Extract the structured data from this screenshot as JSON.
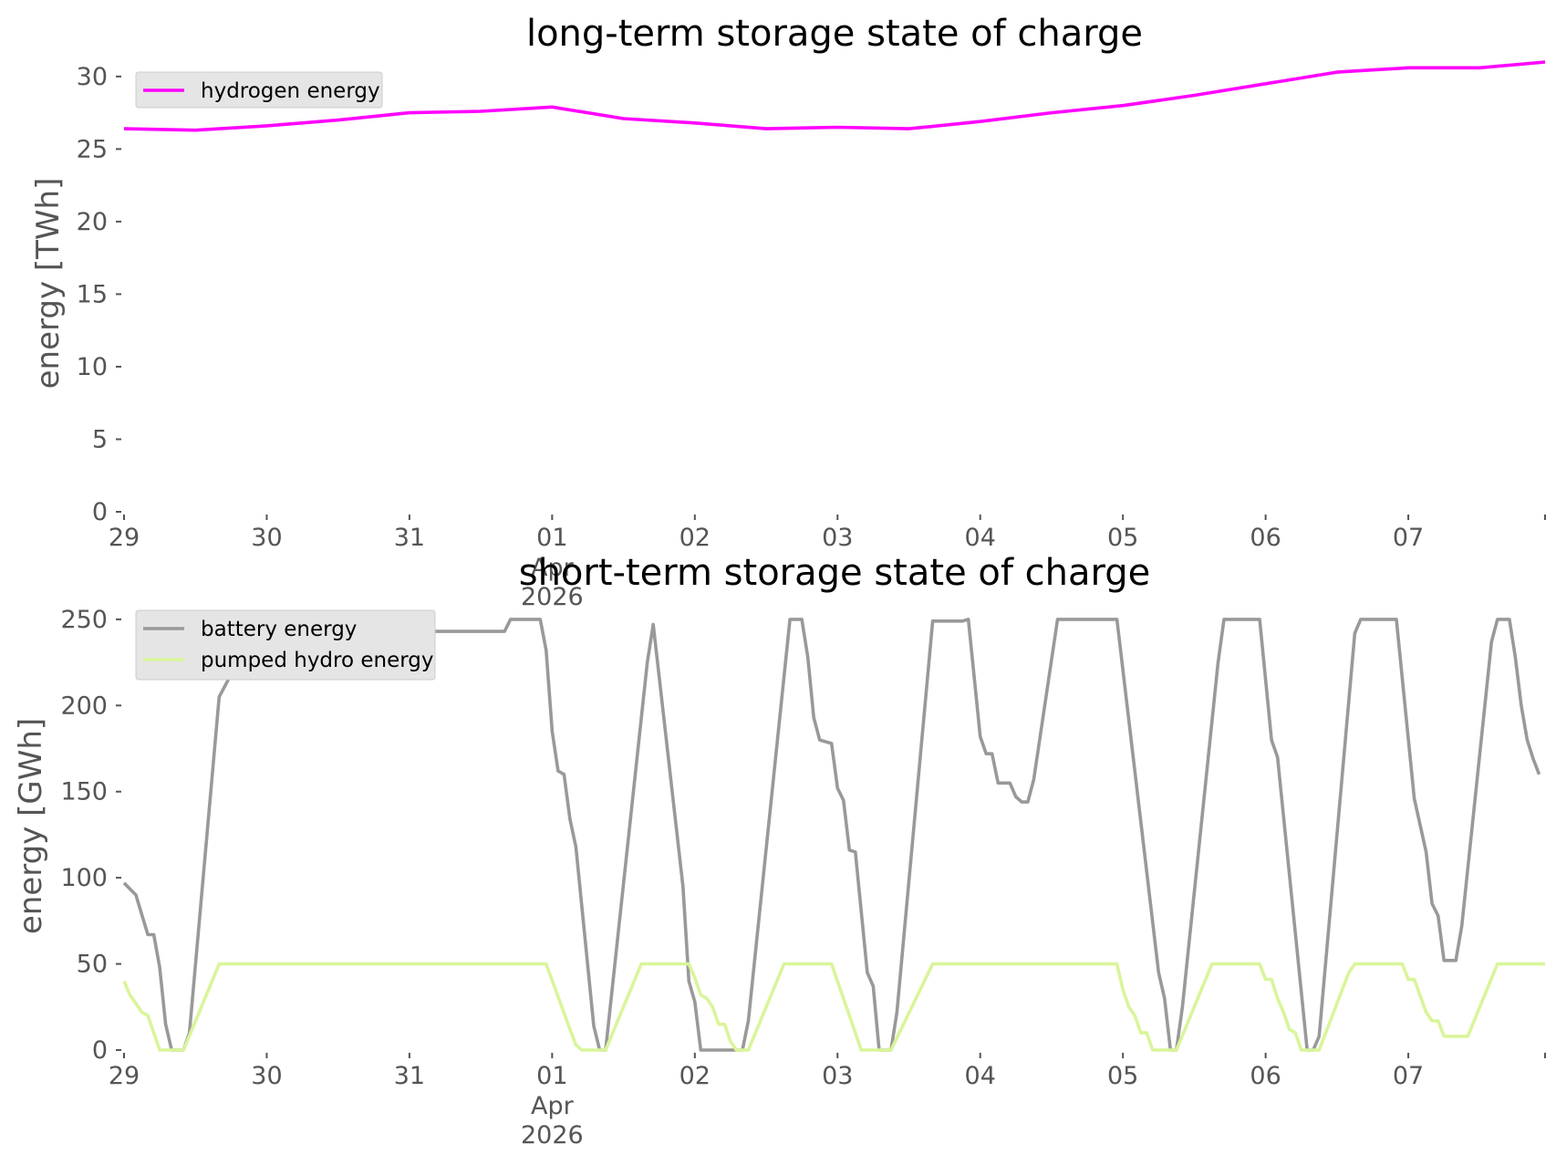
{
  "chart_data": [
    {
      "type": "line",
      "title": "long-term storage state of charge",
      "ylabel": "energy [TWh]",
      "xlabel": "",
      "x_ticks": [
        "29",
        "30",
        "31",
        "01",
        "02",
        "03",
        "04",
        "05",
        "06",
        "07"
      ],
      "x_tick_month": "Apr",
      "x_tick_year": "2026",
      "x_range": [
        "2026-03-29",
        "2026-04-07 23:00"
      ],
      "ylim": [
        0,
        31.5
      ],
      "y_ticks": [
        0,
        5,
        10,
        15,
        20,
        25,
        30
      ],
      "grid": false,
      "legend_position": "top-left",
      "x": [
        "2026-03-29 00:00",
        "2026-03-29 12:00",
        "2026-03-30 00:00",
        "2026-03-30 12:00",
        "2026-03-31 00:00",
        "2026-03-31 12:00",
        "2026-04-01 00:00",
        "2026-04-01 12:00",
        "2026-04-02 00:00",
        "2026-04-02 12:00",
        "2026-04-03 00:00",
        "2026-04-03 12:00",
        "2026-04-04 00:00",
        "2026-04-04 12:00",
        "2026-04-05 00:00",
        "2026-04-05 12:00",
        "2026-04-06 00:00",
        "2026-04-06 12:00",
        "2026-04-07 00:00",
        "2026-04-07 12:00",
        "2026-04-07 23:00"
      ],
      "series": [
        {
          "name": "hydrogen energy",
          "color": "#ff00ff",
          "values": [
            26.4,
            26.3,
            26.6,
            27.0,
            27.5,
            27.6,
            27.9,
            27.1,
            26.8,
            26.4,
            26.5,
            26.4,
            26.9,
            27.5,
            28.0,
            28.7,
            29.5,
            30.3,
            30.6,
            30.6,
            31.0
          ]
        }
      ]
    },
    {
      "type": "line",
      "title": "short-term storage state of charge",
      "ylabel": "energy [GWh]",
      "xlabel": "",
      "x_ticks": [
        "29",
        "30",
        "31",
        "01",
        "02",
        "03",
        "04",
        "05",
        "06",
        "07"
      ],
      "x_tick_month": "Apr",
      "x_tick_year": "2026",
      "x_range": [
        "2026-03-29",
        "2026-04-07 23:00"
      ],
      "ylim": [
        0,
        260
      ],
      "y_ticks": [
        0,
        50,
        100,
        150,
        200,
        250
      ],
      "grid": false,
      "legend_position": "top-left",
      "series": [
        {
          "name": "battery energy",
          "color": "#999999",
          "points": [
            [
              "2026-03-29 00:00",
              97
            ],
            [
              "2026-03-29 02:00",
              90
            ],
            [
              "2026-03-29 04:00",
              67
            ],
            [
              "2026-03-29 05:00",
              67
            ],
            [
              "2026-03-29 06:00",
              48
            ],
            [
              "2026-03-29 07:00",
              15
            ],
            [
              "2026-03-29 08:00",
              0
            ],
            [
              "2026-03-29 10:00",
              0
            ],
            [
              "2026-03-29 11:00",
              10
            ],
            [
              "2026-03-29 16:00",
              205
            ],
            [
              "2026-03-29 18:00",
              218
            ],
            [
              "2026-03-29 21:00",
              218
            ],
            [
              "2026-03-29 23:00",
              250
            ],
            [
              "2026-03-31 00:00",
              250
            ],
            [
              "2026-03-31 01:00",
              243
            ],
            [
              "2026-03-31 16:00",
              243
            ],
            [
              "2026-03-31 17:00",
              250
            ],
            [
              "2026-03-31 22:00",
              250
            ],
            [
              "2026-03-31 23:00",
              232
            ],
            [
              "2026-04-01 00:00",
              185
            ],
            [
              "2026-04-01 01:00",
              162
            ],
            [
              "2026-04-01 02:00",
              160
            ],
            [
              "2026-04-01 03:00",
              134
            ],
            [
              "2026-04-01 04:00",
              118
            ],
            [
              "2026-04-01 07:00",
              14
            ],
            [
              "2026-04-01 08:00",
              0
            ],
            [
              "2026-04-01 09:00",
              0
            ],
            [
              "2026-04-01 16:00",
              225
            ],
            [
              "2026-04-01 17:00",
              247
            ],
            [
              "2026-04-01 22:00",
              95
            ],
            [
              "2026-04-01 23:00",
              40
            ],
            [
              "2026-04-02 00:00",
              28
            ],
            [
              "2026-04-02 01:00",
              0
            ],
            [
              "2026-04-02 08:00",
              0
            ],
            [
              "2026-04-02 09:00",
              17
            ],
            [
              "2026-04-02 16:00",
              250
            ],
            [
              "2026-04-02 18:00",
              250
            ],
            [
              "2026-04-02 19:00",
              228
            ],
            [
              "2026-04-02 20:00",
              193
            ],
            [
              "2026-04-02 21:00",
              180
            ],
            [
              "2026-04-02 23:00",
              178
            ],
            [
              "2026-04-03 00:00",
              152
            ],
            [
              "2026-04-03 01:00",
              145
            ],
            [
              "2026-04-03 02:00",
              116
            ],
            [
              "2026-04-03 03:00",
              115
            ],
            [
              "2026-04-03 05:00",
              45
            ],
            [
              "2026-04-03 06:00",
              37
            ],
            [
              "2026-04-03 07:00",
              0
            ],
            [
              "2026-04-03 09:00",
              0
            ],
            [
              "2026-04-03 10:00",
              22
            ],
            [
              "2026-04-03 16:00",
              249
            ],
            [
              "2026-04-03 21:00",
              249
            ],
            [
              "2026-04-03 22:00",
              250
            ],
            [
              "2026-04-04 00:00",
              182
            ],
            [
              "2026-04-04 01:00",
              172
            ],
            [
              "2026-04-04 02:00",
              172
            ],
            [
              "2026-04-04 03:00",
              155
            ],
            [
              "2026-04-04 05:00",
              155
            ],
            [
              "2026-04-04 06:00",
              147
            ],
            [
              "2026-04-04 07:00",
              144
            ],
            [
              "2026-04-04 08:00",
              144
            ],
            [
              "2026-04-04 09:00",
              157
            ],
            [
              "2026-04-04 13:00",
              250
            ],
            [
              "2026-04-04 23:00",
              250
            ],
            [
              "2026-04-05 06:00",
              45
            ],
            [
              "2026-04-05 07:00",
              30
            ],
            [
              "2026-04-05 08:00",
              0
            ],
            [
              "2026-04-05 09:00",
              0
            ],
            [
              "2026-04-05 10:00",
              25
            ],
            [
              "2026-04-05 16:00",
              225
            ],
            [
              "2026-04-05 17:00",
              250
            ],
            [
              "2026-04-05 23:00",
              250
            ],
            [
              "2026-04-06 01:00",
              180
            ],
            [
              "2026-04-06 02:00",
              170
            ],
            [
              "2026-04-06 07:00",
              0
            ],
            [
              "2026-04-06 08:00",
              0
            ],
            [
              "2026-04-06 09:00",
              8
            ],
            [
              "2026-04-06 15:00",
              242
            ],
            [
              "2026-04-06 16:00",
              250
            ],
            [
              "2026-04-06 22:00",
              250
            ],
            [
              "2026-04-07 01:00",
              146
            ],
            [
              "2026-04-07 03:00",
              115
            ],
            [
              "2026-04-07 04:00",
              85
            ],
            [
              "2026-04-07 05:00",
              78
            ],
            [
              "2026-04-07 06:00",
              52
            ],
            [
              "2026-04-07 08:00",
              52
            ],
            [
              "2026-04-07 09:00",
              72
            ],
            [
              "2026-04-07 14:00",
              237
            ],
            [
              "2026-04-07 15:00",
              250
            ],
            [
              "2026-04-07 17:00",
              250
            ],
            [
              "2026-04-07 18:00",
              228
            ],
            [
              "2026-04-07 19:00",
              200
            ],
            [
              "2026-04-07 20:00",
              180
            ],
            [
              "2026-04-07 21:00",
              169
            ],
            [
              "2026-04-07 22:00",
              160
            ]
          ]
        },
        {
          "name": "pumped hydro energy",
          "color": "#d9f59a",
          "points": [
            [
              "2026-03-29 00:00",
              40
            ],
            [
              "2026-03-29 01:00",
              32
            ],
            [
              "2026-03-29 03:00",
              22
            ],
            [
              "2026-03-29 04:00",
              20
            ],
            [
              "2026-03-29 05:00",
              10
            ],
            [
              "2026-03-29 06:00",
              0
            ],
            [
              "2026-03-29 10:00",
              0
            ],
            [
              "2026-03-29 16:00",
              50
            ],
            [
              "2026-03-31 23:00",
              50
            ],
            [
              "2026-04-01 03:00",
              12
            ],
            [
              "2026-04-01 04:00",
              3
            ],
            [
              "2026-04-01 05:00",
              0
            ],
            [
              "2026-04-01 09:00",
              0
            ],
            [
              "2026-04-01 15:00",
              50
            ],
            [
              "2026-04-01 23:00",
              50
            ],
            [
              "2026-04-02 00:00",
              42
            ],
            [
              "2026-04-02 01:00",
              32
            ],
            [
              "2026-04-02 02:00",
              30
            ],
            [
              "2026-04-02 03:00",
              25
            ],
            [
              "2026-04-02 04:00",
              15
            ],
            [
              "2026-04-02 05:00",
              15
            ],
            [
              "2026-04-02 06:00",
              5
            ],
            [
              "2026-04-02 07:00",
              0
            ],
            [
              "2026-04-02 09:00",
              0
            ],
            [
              "2026-04-02 15:00",
              50
            ],
            [
              "2026-04-02 23:00",
              50
            ],
            [
              "2026-04-03 04:00",
              0
            ],
            [
              "2026-04-03 09:00",
              0
            ],
            [
              "2026-04-03 16:00",
              50
            ],
            [
              "2026-04-04 23:00",
              50
            ],
            [
              "2026-04-05 00:00",
              35
            ],
            [
              "2026-04-05 01:00",
              25
            ],
            [
              "2026-04-05 02:00",
              20
            ],
            [
              "2026-04-05 03:00",
              10
            ],
            [
              "2026-04-05 04:00",
              10
            ],
            [
              "2026-04-05 05:00",
              0
            ],
            [
              "2026-04-05 09:00",
              0
            ],
            [
              "2026-04-05 15:00",
              50
            ],
            [
              "2026-04-05 23:00",
              50
            ],
            [
              "2026-04-06 00:00",
              41
            ],
            [
              "2026-04-06 01:00",
              41
            ],
            [
              "2026-04-06 02:00",
              30
            ],
            [
              "2026-04-06 03:00",
              22
            ],
            [
              "2026-04-06 04:00",
              12
            ],
            [
              "2026-04-06 05:00",
              10
            ],
            [
              "2026-04-06 06:00",
              0
            ],
            [
              "2026-04-06 09:00",
              0
            ],
            [
              "2026-04-06 14:00",
              45
            ],
            [
              "2026-04-06 15:00",
              50
            ],
            [
              "2026-04-06 23:00",
              50
            ],
            [
              "2026-04-07 00:00",
              41
            ],
            [
              "2026-04-07 01:00",
              41
            ],
            [
              "2026-04-07 03:00",
              22
            ],
            [
              "2026-04-07 04:00",
              17
            ],
            [
              "2026-04-07 05:00",
              17
            ],
            [
              "2026-04-07 06:00",
              8
            ],
            [
              "2026-04-07 10:00",
              8
            ],
            [
              "2026-04-07 15:00",
              50
            ],
            [
              "2026-04-07 23:00",
              50
            ]
          ]
        }
      ]
    }
  ]
}
